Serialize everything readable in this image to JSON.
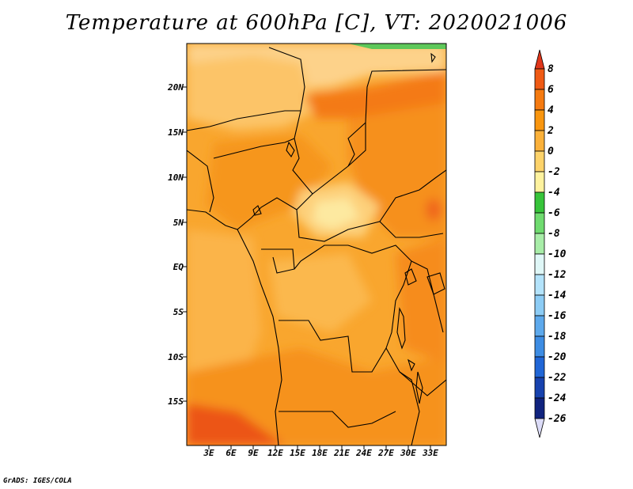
{
  "title": "Temperature at 600hPa [C], VT: 2020021006",
  "footer": "GrADS: IGES/COLA",
  "map": {
    "variable": "Temperature",
    "level": "600hPa",
    "units": "C",
    "valid_time": "2020021006",
    "lat_labels": [
      "20N",
      "15N",
      "10N",
      "5N",
      "EQ",
      "5S",
      "10S",
      "15S"
    ],
    "lon_labels": [
      "3E",
      "6E",
      "9E",
      "12E",
      "15E",
      "18E",
      "21E",
      "24E",
      "27E",
      "30E",
      "33E"
    ]
  },
  "colorbar": {
    "labels": [
      "8",
      "6",
      "4",
      "2",
      "0",
      "-2",
      "-4",
      "-6",
      "-8",
      "-10",
      "-12",
      "-14",
      "-16",
      "-18",
      "-20",
      "-22",
      "-24",
      "-26"
    ],
    "colors": [
      "#e0361a",
      "#ef5a14",
      "#f57a10",
      "#f9960f",
      "#fbb13a",
      "#fdd36a",
      "#fef29e",
      "#37c43a",
      "#6fdb6f",
      "#a8eda8",
      "#dff7f7",
      "#b3e3fb",
      "#8cccf5",
      "#5da9ec",
      "#3d8ce3",
      "#2066d6",
      "#1742ae",
      "#10237e",
      "#081050"
    ],
    "top_arrow_color": "#e0361a",
    "bottom_arrow_color": "#dcdcf8"
  },
  "palette": {
    "very_warm": "#e84c1c",
    "warm": "#f47e14",
    "orange": "#f8a020",
    "light_orange": "#fbb84a",
    "pale": "#fdd98a",
    "cool": "#5ec85a",
    "ocean_border": "#000000"
  }
}
